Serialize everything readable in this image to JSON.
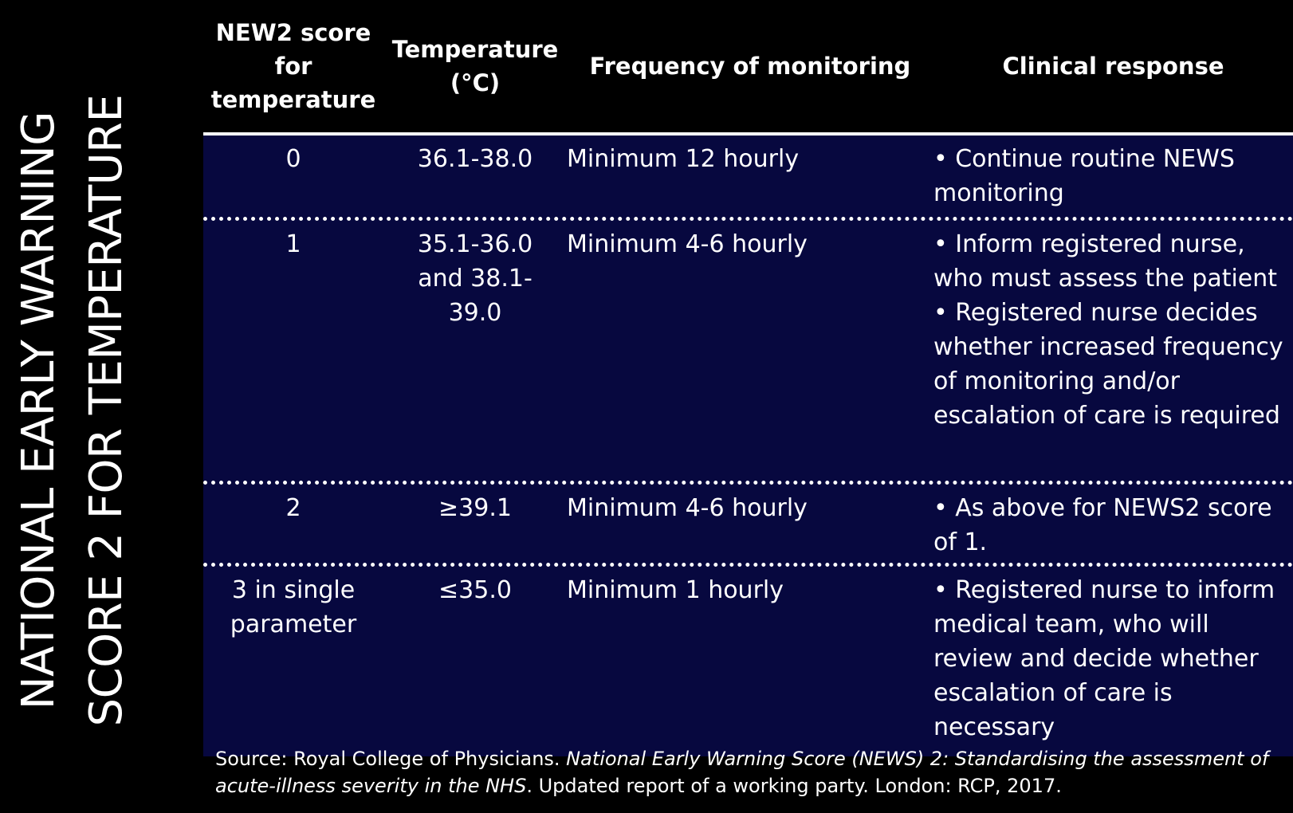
{
  "side_title": {
    "line1": "NATIONAL EARLY WARNING",
    "line2": "SCORE 2 FOR TEMPERATURE"
  },
  "table": {
    "headers": {
      "score": "NEW2 score for temperature",
      "temperature": "Temperature (°C)",
      "frequency": "Frequency of monitoring",
      "response": "Clinical response"
    },
    "rows": [
      {
        "score": "0",
        "temperature": "36.1-38.0",
        "frequency": "Minimum 12 hourly",
        "response": [
          "• Continue routine NEWS monitoring"
        ]
      },
      {
        "score": "1",
        "temperature": "35.1-36.0 and 38.1-39.0",
        "frequency": "Minimum 4-6 hourly",
        "response": [
          "• Inform registered nurse, who must assess the patient",
          "• Registered nurse decides whether increased frequency of monitoring and/or escalation of care is required"
        ]
      },
      {
        "score": "2",
        "temperature": "≥39.1",
        "frequency": "Minimum 4-6 hourly",
        "response": [
          "• As above for NEWS2 score of 1."
        ]
      },
      {
        "score": "3 in single parameter",
        "temperature": "≤35.0",
        "frequency": "Minimum 1 hourly",
        "response": [
          "• Registered nurse to inform medical team, who will review and decide whether escalation of care is necessary"
        ]
      }
    ]
  },
  "source": {
    "prefix": "Source: Royal College of Physicians. ",
    "title": "National Early Warning Score (NEWS) 2: Standardising the assessment of acute-illness severity in the NHS",
    "suffix": ". Updated report of a working party. London: RCP, 2017."
  },
  "colors": {
    "background": "#000000",
    "table_body": "#07083f",
    "text": "#ffffff"
  }
}
